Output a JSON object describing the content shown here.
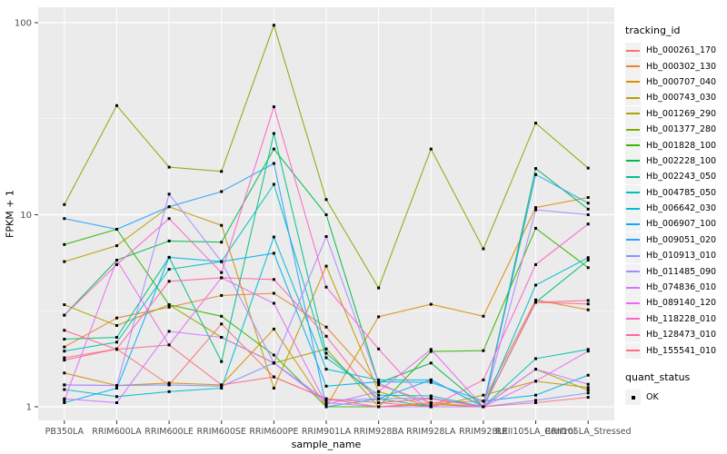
{
  "figure": {
    "y_axis_title": "FPKM + 1",
    "x_axis_title": "sample_name"
  },
  "legend": {
    "tracking_header": "tracking_id",
    "quant_header": "quant_status",
    "quant_ok_label": "OK",
    "quant_marker": "black-square-point",
    "key_bg": "#F2F2F2"
  },
  "chart_data": {
    "type": "line",
    "title": "",
    "xlabel": "sample_name",
    "ylabel": "FPKM + 1",
    "y_scale": "log10",
    "ylim": [
      1,
      100
    ],
    "y_ticks": [
      "1",
      "10",
      "100"
    ],
    "y_minor_ticks": [
      3.1623,
      31.623
    ],
    "grid": true,
    "legend_position": "right",
    "panel_bg": "#EBEBEB",
    "grid_color": "#FFFFFF",
    "tick_color": "#333333",
    "text_color": "#4D4D4D",
    "point_color": "#000000",
    "point_shape": "square",
    "quant_status": "OK",
    "categories": [
      "PB350LA",
      "RRIM600LA",
      "RRIM600LE",
      "RRIM600SE",
      "RRIM600PE",
      "RRIM901LA",
      "RRIM928BA",
      "RRIM928LA",
      "RRIM928LE",
      "RRII105LA_Control",
      "RRII105LA_Stressed"
    ],
    "series": [
      {
        "name": "Hb_000261_170",
        "color": "#F8766D",
        "values": [
          1.8,
          2.0,
          1.3,
          2.7,
          1.43,
          1.1,
          1.05,
          1.0,
          1.0,
          3.5,
          3.43
        ]
      },
      {
        "name": "Hb_000302_130",
        "color": "#EA8331",
        "values": [
          2.05,
          2.9,
          3.3,
          3.8,
          3.9,
          2.6,
          1.3,
          1.05,
          1.07,
          3.6,
          3.2
        ]
      },
      {
        "name": "Hb_000707_040",
        "color": "#D89000",
        "values": [
          1.5,
          1.29,
          1.33,
          1.3,
          2.54,
          1.0,
          2.94,
          3.42,
          2.96,
          10.9,
          12.3
        ]
      },
      {
        "name": "Hb_000743_030",
        "color": "#C09B00",
        "values": [
          5.7,
          6.9,
          11.0,
          8.8,
          1.25,
          5.4,
          1.2,
          1.0,
          1.15,
          1.36,
          1.26
        ]
      },
      {
        "name": "Hb_001269_290",
        "color": "#A3A500",
        "values": [
          3.4,
          2.65,
          3.4,
          2.3,
          1.69,
          2.0,
          1.0,
          1.03,
          1.0,
          1.57,
          1.22
        ]
      },
      {
        "name": "Hb_001377_280",
        "color": "#7CAE00",
        "values": [
          11.3,
          37.0,
          17.7,
          16.8,
          97.0,
          12.0,
          4.16,
          22.0,
          6.65,
          30.0,
          17.5
        ]
      },
      {
        "name": "Hb_001828_100",
        "color": "#39B600",
        "values": [
          7.0,
          8.4,
          3.4,
          2.96,
          1.86,
          1.0,
          1.0,
          1.94,
          1.96,
          8.5,
          5.3
        ]
      },
      {
        "name": "Hb_002228_100",
        "color": "#00BB4E",
        "values": [
          3.0,
          5.8,
          7.3,
          7.2,
          22.0,
          10.0,
          1.33,
          1.69,
          1.0,
          17.4,
          10.7
        ]
      },
      {
        "name": "Hb_002243_050",
        "color": "#00C087",
        "values": [
          2.25,
          2.3,
          6.0,
          1.72,
          26.5,
          1.9,
          1.1,
          1.0,
          1.0,
          3.5,
          5.8
        ]
      },
      {
        "name": "Hb_004785_050",
        "color": "#00C0B8",
        "values": [
          1.95,
          2.17,
          5.2,
          5.7,
          14.4,
          1.8,
          1.15,
          1.14,
          1.0,
          1.78,
          1.99
        ]
      },
      {
        "name": "Hb_006642_030",
        "color": "#00BDD2",
        "values": [
          1.23,
          1.13,
          1.2,
          1.25,
          7.66,
          1.57,
          1.38,
          1.38,
          1.0,
          4.3,
          5.98
        ]
      },
      {
        "name": "Hb_006907_100",
        "color": "#00B2F3",
        "values": [
          1.05,
          1.25,
          6.0,
          5.7,
          6.3,
          1.28,
          1.35,
          1.34,
          1.07,
          1.15,
          1.46
        ]
      },
      {
        "name": "Hb_009051_020",
        "color": "#29A3FF",
        "values": [
          9.55,
          8.4,
          11.0,
          13.2,
          18.5,
          1.0,
          1.1,
          1.38,
          1.0,
          16.2,
          11.5
        ]
      },
      {
        "name": "Hb_010913_010",
        "color": "#7F96FF",
        "values": [
          1.3,
          1.29,
          1.3,
          1.28,
          1.69,
          1.08,
          1.1,
          1.11,
          1.0,
          1.08,
          1.18
        ]
      },
      {
        "name": "Hb_011485_090",
        "color": "#AC88FF",
        "values": [
          1.3,
          1.29,
          12.8,
          5.7,
          1.69,
          7.7,
          1.33,
          1.0,
          1.0,
          10.6,
          10.0
        ]
      },
      {
        "name": "Hb_074836_010",
        "color": "#D277FF",
        "values": [
          1.1,
          1.05,
          2.47,
          2.3,
          1.69,
          1.05,
          1.0,
          1.0,
          1.0,
          1.57,
          1.31
        ]
      },
      {
        "name": "Hb_089140_120",
        "color": "#EA6AF1",
        "values": [
          1.08,
          5.8,
          2.1,
          4.7,
          3.46,
          1.03,
          1.2,
          1.99,
          1.0,
          1.36,
          1.95
        ]
      },
      {
        "name": "Hb_118228_010",
        "color": "#FF62CE",
        "values": [
          3.0,
          5.5,
          9.55,
          5.0,
          36.5,
          4.2,
          2.0,
          1.0,
          1.38,
          5.5,
          8.95
        ]
      },
      {
        "name": "Hb_128473_010",
        "color": "#FF64A8",
        "values": [
          1.75,
          2.0,
          4.5,
          4.7,
          4.6,
          2.33,
          1.05,
          1.1,
          1.0,
          3.5,
          3.58
        ]
      },
      {
        "name": "Hb_155541_010",
        "color": "#FF6C84",
        "values": [
          2.5,
          1.99,
          2.1,
          1.3,
          1.43,
          1.1,
          1.0,
          1.05,
          1.0,
          1.05,
          1.12
        ]
      }
    ]
  }
}
